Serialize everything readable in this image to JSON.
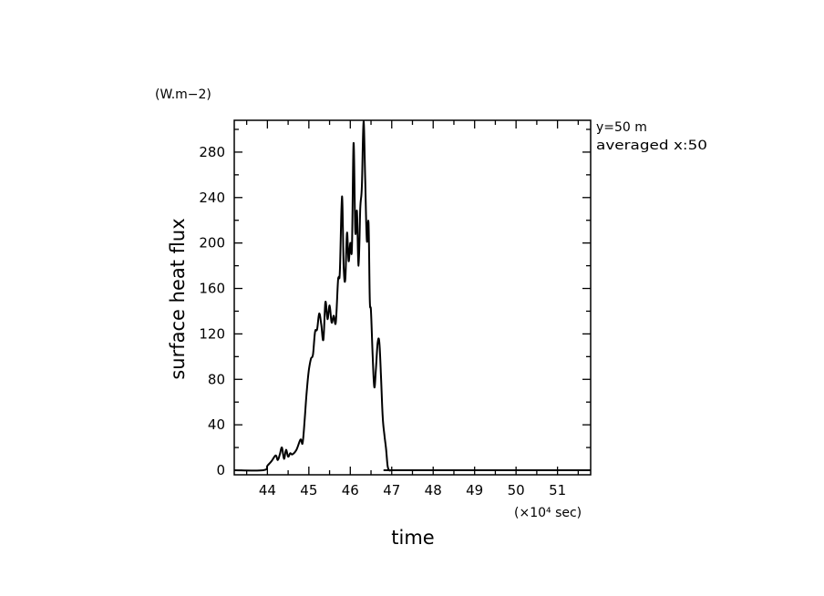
{
  "chart_data": {
    "type": "line",
    "xlabel": "time",
    "ylabel": "surface heat flux",
    "x_unit": "(×10⁴ sec)",
    "y_unit": "(W.m−2)",
    "annotations": [
      "y=50 m",
      "averaged  x:50"
    ],
    "xlim": [
      43.2,
      51.8
    ],
    "ylim": [
      -4,
      308
    ],
    "x_ticks": [
      44,
      45,
      46,
      47,
      48,
      49,
      50,
      51
    ],
    "y_ticks": [
      0,
      40,
      80,
      120,
      160,
      200,
      240,
      280
    ],
    "grid": false,
    "series": [
      {
        "x": [
          43.2,
          43.9,
          44.0,
          44.1,
          44.2,
          44.25,
          44.3,
          44.35,
          44.4,
          44.45,
          44.5,
          44.55,
          44.6,
          44.7,
          44.8,
          44.85,
          44.9,
          44.95,
          45.0,
          45.05,
          45.1,
          45.15,
          45.2,
          45.25,
          45.3,
          45.35,
          45.4,
          45.45,
          45.5,
          45.55,
          45.6,
          45.65,
          45.7,
          45.72,
          45.75,
          45.8,
          45.84,
          45.88,
          45.92,
          45.96,
          46.0,
          46.04,
          46.08,
          46.12,
          46.16,
          46.2,
          46.24,
          46.28,
          46.32,
          46.36,
          46.4,
          46.44,
          46.47,
          46.5,
          46.54,
          46.58,
          46.62,
          46.66,
          46.7,
          46.74,
          46.78,
          46.82,
          46.86,
          46.9,
          46.94,
          46.98,
          47.02,
          47.06,
          47.1,
          47.15,
          47.2,
          51.8
        ],
        "y": [
          0,
          0,
          4,
          8,
          13,
          9,
          14,
          20,
          10,
          18,
          12,
          15,
          14,
          18,
          27,
          24,
          45,
          70,
          88,
          98,
          102,
          122,
          124,
          138,
          128,
          115,
          148,
          133,
          145,
          130,
          136,
          130,
          165,
          170,
          176,
          241,
          180,
          168,
          209,
          184,
          200,
          196,
          288,
          210,
          228,
          180,
          230,
          250,
          307,
          255,
          202,
          218,
          150,
          140,
          100,
          73,
          90,
          112,
          113,
          84,
          48,
          32,
          20,
          4,
          0,
          0,
          0,
          0,
          0,
          0,
          0,
          0
        ]
      }
    ]
  }
}
